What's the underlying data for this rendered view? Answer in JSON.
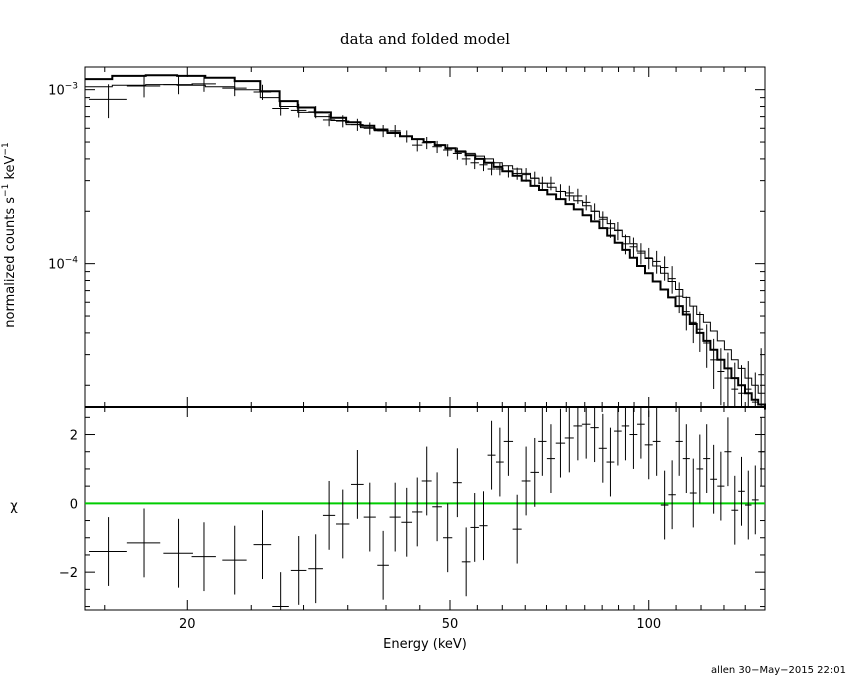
{
  "chart_data": [
    {
      "type": "line",
      "panel": "top",
      "title": "data and folded model",
      "xlabel": "",
      "ylabel": "normalized counts s^-1 keV^-1",
      "ylabel_parts": [
        "normalized counts s",
        "−1",
        " keV",
        "−1"
      ],
      "x_scale": "log",
      "y_scale": "log",
      "xlim": [
        14,
        150
      ],
      "ylim": [
        1.5e-05,
        0.00135
      ],
      "y_tick_labels": [
        {
          "value": 0.001,
          "base": "10",
          "exp": "−3"
        },
        {
          "value": 0.0001,
          "base": "10",
          "exp": "−4"
        }
      ],
      "series": [
        {
          "kind": "data",
          "x": [
            15.2,
            17.2,
            19.4,
            21.2,
            23.6,
            26.0,
            27.7,
            29.5,
            31.3,
            32.8,
            34.4,
            36.2,
            37.8,
            39.6,
            41.3,
            43.0,
            44.6,
            46.1,
            47.8,
            49.6,
            51.3,
            52.9,
            54.5,
            56.2,
            57.8,
            59.5,
            61.3,
            63.2,
            65.2,
            67.2,
            69.0,
            71.1,
            73.5,
            75.8,
            78.1,
            80.4,
            82.8,
            85.2,
            87.5,
            89.8,
            92.2,
            94.8,
            97.3,
            100.0,
            102.8,
            105.7,
            108.5,
            111.2,
            114.0,
            116.8,
            119.5,
            122.4,
            125.4,
            128.6,
            131.8,
            135.0,
            138.2,
            141.5,
            145.0,
            148.0
          ],
          "y": [
            0.00088,
            0.00105,
            0.00107,
            0.00108,
            0.00102,
            0.00097,
            0.00078,
            0.00076,
            0.000745,
            0.00067,
            0.00066,
            0.00063,
            0.0006,
            0.00058,
            0.00058,
            0.00054,
            0.00048,
            0.000495,
            0.00047,
            0.00045,
            0.00043,
            0.0004,
            0.00038,
            0.00037,
            0.00035,
            0.00035,
            0.00034,
            0.00033,
            0.000325,
            0.00031,
            0.00029,
            0.00029,
            0.00026,
            0.000255,
            0.000245,
            0.000225,
            0.0002,
            0.00018,
            0.00016,
            0.000155,
            0.00013,
            0.000125,
            0.000115,
            0.000108,
            0.000103,
            9.5e-05,
            8.2e-05,
            6.5e-05,
            5.3e-05,
            4.6e-05,
            4.2e-05,
            3.5e-05,
            2.8e-05,
            2.4e-05,
            2.2e-05,
            1.9e-05,
            1.8e-05,
            1.9e-05,
            1.6e-05,
            2.3e-05
          ],
          "xerr": [
            1.0,
            1.0,
            1.0,
            0.9,
            1.0,
            0.8,
            0.8,
            0.8,
            0.8,
            0.7,
            0.8,
            0.8,
            0.8,
            0.8,
            0.8,
            0.8,
            0.8,
            0.8,
            0.8,
            0.8,
            0.8,
            0.8,
            0.8,
            0.8,
            0.8,
            0.8,
            1.0,
            1.0,
            1.0,
            1.0,
            1.0,
            1.0,
            1.2,
            1.2,
            1.2,
            1.2,
            1.2,
            1.2,
            1.2,
            1.2,
            1.2,
            1.3,
            1.3,
            1.4,
            1.4,
            1.4,
            1.4,
            1.4,
            1.4,
            1.4,
            1.4,
            1.5,
            1.5,
            1.6,
            1.6,
            1.6,
            1.6,
            1.6,
            1.7,
            1.5
          ],
          "yerr_frac": [
            0.22,
            0.14,
            0.12,
            0.1,
            0.1,
            0.1,
            0.09,
            0.09,
            0.08,
            0.08,
            0.08,
            0.08,
            0.08,
            0.08,
            0.08,
            0.08,
            0.08,
            0.08,
            0.08,
            0.08,
            0.08,
            0.08,
            0.08,
            0.08,
            0.08,
            0.08,
            0.08,
            0.08,
            0.09,
            0.09,
            0.09,
            0.09,
            0.1,
            0.1,
            0.1,
            0.1,
            0.11,
            0.11,
            0.12,
            0.12,
            0.13,
            0.13,
            0.14,
            0.14,
            0.15,
            0.16,
            0.18,
            0.2,
            0.22,
            0.24,
            0.26,
            0.28,
            0.32,
            0.36,
            0.4,
            0.42,
            0.45,
            0.45,
            0.48,
            0.42
          ]
        },
        {
          "kind": "model-thick",
          "x": [
            14,
            15.4,
            17.3,
            19.3,
            21.3,
            23.6,
            25.8,
            27.6,
            29.4,
            31.2,
            33.0,
            34.8,
            36.6,
            38.4,
            40.2,
            42.0,
            43.8,
            45.6,
            47.4,
            49.2,
            51.0,
            52.8,
            54.6,
            56.4,
            58.2,
            60.0,
            62.2,
            64.2,
            66.2,
            68.2,
            70.2,
            72.4,
            74.8,
            77.0,
            79.4,
            81.8,
            84.2,
            86.5,
            88.8,
            91.2,
            93.6,
            96.0,
            98.7,
            101.4,
            104.2,
            107.0,
            109.8,
            112.6,
            115.4,
            118.2,
            121.0,
            124.0,
            127.0,
            130.2,
            133.4,
            136.6,
            139.9,
            143.2,
            146.5,
            150
          ],
          "y": [
            0.00115,
            0.0012,
            0.00121,
            0.0012,
            0.00117,
            0.00112,
            0.00098,
            0.00086,
            0.00079,
            0.00074,
            0.00069,
            0.00065,
            0.00062,
            0.00059,
            0.000565,
            0.00054,
            0.00052,
            0.0005,
            0.00048,
            0.00046,
            0.00044,
            0.00042,
            0.0004,
            0.00038,
            0.00036,
            0.00034,
            0.00032,
            0.0003,
            0.00028,
            0.000265,
            0.00025,
            0.000235,
            0.00022,
            0.000205,
            0.00019,
            0.000175,
            0.00016,
            0.000145,
            0.000132,
            0.00012,
            0.000108,
            9.7e-05,
            8.8e-05,
            7.9e-05,
            7.1e-05,
            6.4e-05,
            5.7e-05,
            5.1e-05,
            4.5e-05,
            4e-05,
            3.6e-05,
            3.2e-05,
            2.8e-05,
            2.5e-05,
            2.2e-05,
            2e-05,
            1.8e-05,
            1.65e-05,
            1.55e-05,
            1.45e-05
          ]
        },
        {
          "kind": "model-thin",
          "x": [
            14,
            15.4,
            17.3,
            19.3,
            21.3,
            23.6,
            25.8,
            27.6,
            29.4,
            31.2,
            33.0,
            34.8,
            36.6,
            38.4,
            40.2,
            42.0,
            43.8,
            45.6,
            47.4,
            49.2,
            51.0,
            52.8,
            54.6,
            56.4,
            58.2,
            60.0,
            62.2,
            64.2,
            66.2,
            68.2,
            70.2,
            72.4,
            74.8,
            77.0,
            79.4,
            81.8,
            84.2,
            86.5,
            88.8,
            91.2,
            93.6,
            96.0,
            98.7,
            101.4,
            104.2,
            107.0,
            109.8,
            112.6,
            115.4,
            118.2,
            121.0,
            124.0,
            127.0,
            130.2,
            133.4,
            136.6,
            139.9,
            143.2,
            146.5,
            150
          ],
          "y": [
            0.00104,
            0.00106,
            0.00107,
            0.00106,
            0.00104,
            0.001,
            0.0009,
            0.0008,
            0.00074,
            0.0007,
            0.000665,
            0.00063,
            0.000605,
            0.00058,
            0.00056,
            0.00054,
            0.00052,
            0.0005,
            0.00048,
            0.00046,
            0.000445,
            0.00043,
            0.000415,
            0.0004,
            0.00038,
            0.000365,
            0.00035,
            0.00033,
            0.00031,
            0.00029,
            0.000275,
            0.00026,
            0.000245,
            0.00023,
            0.000215,
            0.0002,
            0.000185,
            0.00017,
            0.000156,
            0.000143,
            0.00013,
            0.000118,
            0.000107,
            9.7e-05,
            8.8e-05,
            7.9e-05,
            7.1e-05,
            6.4e-05,
            5.7e-05,
            5.1e-05,
            4.6e-05,
            4.1e-05,
            3.6e-05,
            3.2e-05,
            2.8e-05,
            2.5e-05,
            2.2e-05,
            2e-05,
            1.8e-05,
            1.65e-05
          ]
        }
      ]
    },
    {
      "type": "scatter",
      "panel": "bottom",
      "xlabel": "Energy (keV)",
      "ylabel": "χ",
      "x_scale": "log",
      "xlim": [
        14,
        150
      ],
      "ylim": [
        -3.1,
        2.8
      ],
      "x_ticks": [
        20,
        50,
        100
      ],
      "y_ticks": [
        -2,
        0,
        2
      ],
      "y_tick_labels": [
        "−2",
        "0",
        "2"
      ],
      "zero_line_color": "#00cc00",
      "residuals": {
        "x": [
          15.2,
          17.2,
          19.4,
          21.2,
          23.6,
          26.0,
          27.7,
          29.5,
          31.3,
          32.8,
          34.4,
          36.2,
          37.8,
          39.6,
          41.3,
          43.0,
          44.6,
          46.1,
          47.8,
          49.6,
          51.3,
          52.9,
          54.5,
          56.2,
          57.8,
          59.5,
          61.3,
          63.2,
          65.2,
          67.2,
          69.0,
          71.1,
          73.5,
          75.8,
          78.1,
          80.4,
          82.8,
          85.2,
          87.5,
          89.8,
          92.2,
          94.8,
          97.3,
          100.0,
          102.8,
          105.7,
          108.5,
          111.2,
          114.0,
          116.8,
          119.5,
          122.4,
          125.4,
          128.6,
          131.8,
          135.0,
          138.2,
          141.5,
          145.0,
          148.0
        ],
        "y": [
          -1.4,
          -1.15,
          -1.45,
          -1.55,
          -1.65,
          -1.2,
          -3.0,
          -1.95,
          -1.9,
          -0.35,
          -0.6,
          0.55,
          -0.4,
          -1.8,
          -0.4,
          -0.55,
          -0.25,
          0.65,
          -0.1,
          -1.0,
          0.6,
          -1.7,
          -0.7,
          -0.65,
          1.4,
          1.2,
          1.8,
          -0.75,
          0.65,
          0.9,
          1.8,
          1.3,
          1.75,
          1.9,
          2.25,
          2.3,
          2.2,
          1.6,
          1.2,
          2.1,
          2.25,
          2.0,
          2.3,
          1.7,
          1.8,
          -0.05,
          0.25,
          1.8,
          1.3,
          0.3,
          1.0,
          1.3,
          0.7,
          0.5,
          1.5,
          -0.2,
          0.35,
          -0.05,
          0.1,
          1.5
        ],
        "xerr": [
          1.0,
          1.0,
          1.0,
          0.9,
          1.0,
          0.8,
          0.8,
          0.8,
          0.8,
          0.7,
          0.8,
          0.8,
          0.8,
          0.8,
          0.8,
          0.8,
          0.8,
          0.8,
          0.8,
          0.8,
          0.8,
          0.8,
          0.8,
          0.8,
          0.8,
          0.8,
          1.0,
          1.0,
          1.0,
          1.0,
          1.0,
          1.0,
          1.2,
          1.2,
          1.2,
          1.2,
          1.2,
          1.2,
          1.2,
          1.2,
          1.2,
          1.3,
          1.3,
          1.4,
          1.4,
          1.4,
          1.4,
          1.4,
          1.4,
          1.4,
          1.4,
          1.5,
          1.5,
          1.6,
          1.6,
          1.6,
          1.6,
          1.6,
          1.7,
          1.5
        ],
        "yerr": 1.0
      }
    }
  ],
  "footer": "allen 30−May−2015 22:01"
}
